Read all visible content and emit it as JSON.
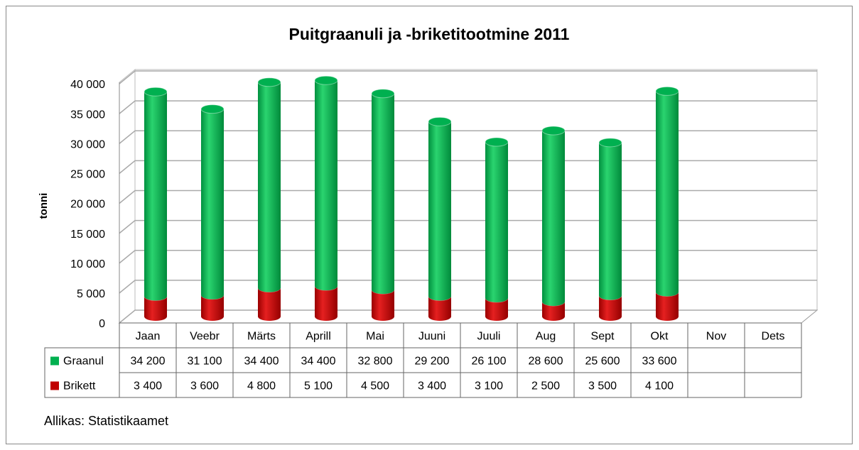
{
  "chart_data": {
    "type": "bar",
    "stacked": true,
    "title": "Puitgraanuli ja -briketitootmine 2011",
    "y_label": "tonni",
    "categories": [
      "Jaan",
      "Veebr",
      "Märts",
      "Aprill",
      "Mai",
      "Juuni",
      "Juuli",
      "Aug",
      "Sept",
      "Okt",
      "Nov",
      "Dets"
    ],
    "series": [
      {
        "name": "Brikett",
        "color": "#c00000",
        "values": [
          3400,
          3600,
          4800,
          5100,
          4500,
          3400,
          3100,
          2500,
          3500,
          4100,
          null,
          null
        ],
        "value_labels": [
          "3 400",
          "3 600",
          "4 800",
          "5 100",
          "4 500",
          "3 400",
          "3 100",
          "2 500",
          "3 500",
          "4 100",
          null,
          null
        ]
      },
      {
        "name": "Graanul",
        "color": "#00b050",
        "values": [
          34200,
          31100,
          34400,
          34400,
          32800,
          29200,
          26100,
          28600,
          25600,
          33600,
          null,
          null
        ],
        "value_labels": [
          "34 200",
          "31 100",
          "34 400",
          "34 400",
          "32 800",
          "29 200",
          "26 100",
          "28 600",
          "25 600",
          "33 600",
          null,
          null
        ]
      }
    ],
    "ylim": [
      0,
      40000
    ],
    "yticks": [
      0,
      {
        "value": 5000,
        "label": "5 000"
      },
      {
        "value": 10000,
        "label": "10 000"
      },
      {
        "value": 15000,
        "label": "15 000"
      },
      {
        "value": 20000,
        "label": "20 000"
      },
      {
        "value": 25000,
        "label": "25 000"
      },
      {
        "value": 30000,
        "label": "30 000"
      },
      {
        "value": 35000,
        "label": "35 000"
      },
      {
        "value": 40000,
        "label": "40 000"
      }
    ],
    "grid": true,
    "source": "Allikas: Statistikaamet"
  }
}
